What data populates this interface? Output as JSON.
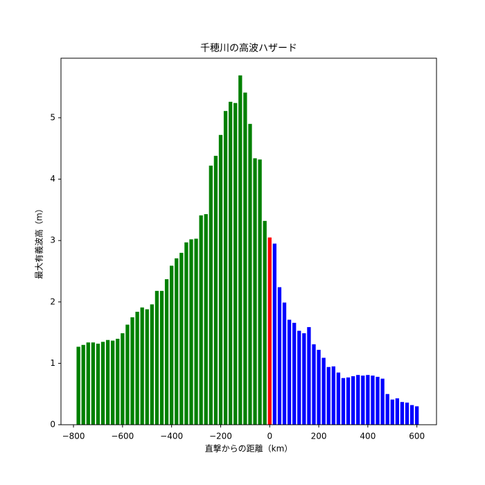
{
  "chart_data": {
    "type": "bar",
    "title": "千穂川の高波ハザード",
    "x_label": "直撃からの距離（km）",
    "y_label": "最大有義波高（m）",
    "series": [
      {
        "color": "green",
        "x": [
          -780,
          -760,
          -740,
          -720,
          -700,
          -680,
          -660,
          -640,
          -620,
          -600,
          -580,
          -560,
          -540,
          -520,
          -500,
          -480,
          -460,
          -440,
          -420,
          -400,
          -380,
          -360,
          -340,
          -320,
          -300,
          -280,
          -260,
          -240,
          -220,
          -200,
          -180,
          -160,
          -140,
          -120,
          -100,
          -80,
          -60,
          -40,
          -20
        ],
        "values": [
          1.27,
          1.3,
          1.34,
          1.34,
          1.32,
          1.35,
          1.38,
          1.37,
          1.4,
          1.49,
          1.63,
          1.75,
          1.84,
          1.91,
          1.88,
          1.96,
          2.18,
          2.18,
          2.37,
          2.59,
          2.71,
          2.8,
          2.97,
          3.02,
          3.03,
          3.41,
          3.43,
          4.22,
          4.38,
          4.72,
          5.11,
          5.26,
          5.24,
          5.69,
          5.41,
          4.9,
          4.34,
          4.32,
          3.32
        ]
      },
      {
        "color": "red",
        "x": [
          0
        ],
        "values": [
          3.05
        ]
      },
      {
        "color": "blue",
        "x": [
          20,
          40,
          60,
          80,
          100,
          120,
          140,
          160,
          180,
          200,
          220,
          240,
          260,
          280,
          300,
          320,
          340,
          360,
          380,
          400,
          420,
          440,
          460,
          480,
          500,
          520,
          540,
          560,
          580,
          600
        ],
        "values": [
          2.95,
          2.24,
          1.99,
          1.71,
          1.66,
          1.53,
          1.49,
          1.59,
          1.31,
          1.22,
          1.09,
          0.94,
          0.95,
          0.85,
          0.76,
          0.77,
          0.79,
          0.81,
          0.8,
          0.81,
          0.8,
          0.78,
          0.75,
          0.5,
          0.41,
          0.43,
          0.37,
          0.36,
          0.32,
          0.3
        ]
      }
    ],
    "xlim": [
      -851,
      680
    ],
    "ylim": [
      0,
      5.97
    ],
    "xticks": [
      {
        "value": -800,
        "label": "−800"
      },
      {
        "value": -600,
        "label": "−600"
      },
      {
        "value": -400,
        "label": "−400"
      },
      {
        "value": -200,
        "label": "−200"
      },
      0,
      200,
      400,
      600
    ],
    "yticks": [
      0,
      1,
      2,
      3,
      4,
      5
    ]
  }
}
